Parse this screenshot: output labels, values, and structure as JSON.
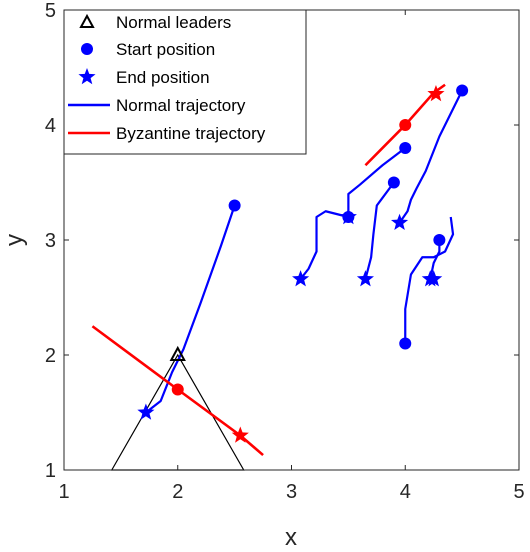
{
  "chart_data": {
    "type": "line",
    "title": "",
    "xlabel": "x",
    "ylabel": "y",
    "xlim": [
      1,
      5
    ],
    "ylim": [
      1,
      5
    ],
    "xticks": [
      "1",
      "2",
      "3",
      "4",
      "5"
    ],
    "yticks": [
      "1",
      "2",
      "3",
      "4",
      "5"
    ],
    "grid": false,
    "legend_position": "top-left",
    "legend": [
      {
        "label": "Normal leaders",
        "marker": "triangle",
        "color": "#000000"
      },
      {
        "label": "Start position",
        "marker": "circle",
        "color": "#0000ff"
      },
      {
        "label": "End position",
        "marker": "star",
        "color": "#0000ff"
      },
      {
        "label": "Normal trajectory",
        "marker": "line",
        "color": "#0000ff"
      },
      {
        "label": "Byzantine trajectory",
        "marker": "line",
        "color": "#ff0000"
      }
    ],
    "leader_triangle": [
      [
        1.42,
        1.0
      ],
      [
        2.0,
        2.0
      ],
      [
        2.58,
        1.0
      ]
    ],
    "normal_trajectories": [
      {
        "points": [
          [
            2.5,
            3.3
          ],
          [
            2.38,
            2.95
          ],
          [
            2.2,
            2.45
          ],
          [
            2.05,
            2.05
          ],
          [
            1.95,
            1.85
          ],
          [
            1.85,
            1.6
          ],
          [
            1.72,
            1.5
          ]
        ],
        "start": [
          2.5,
          3.3
        ],
        "end": [
          1.72,
          1.5
        ]
      },
      {
        "points": [
          [
            4.5,
            4.3
          ],
          [
            4.4,
            4.1
          ],
          [
            4.3,
            3.9
          ],
          [
            4.18,
            3.6
          ],
          [
            4.1,
            3.45
          ],
          [
            4.05,
            3.35
          ],
          [
            4.02,
            3.25
          ],
          [
            3.95,
            3.15
          ]
        ],
        "start": [
          4.5,
          4.3
        ],
        "end": [
          3.95,
          3.15
        ]
      },
      {
        "points": [
          [
            4.0,
            3.8
          ],
          [
            3.8,
            3.65
          ],
          [
            3.6,
            3.48
          ],
          [
            3.5,
            3.4
          ],
          [
            3.5,
            3.2
          ]
        ],
        "start": [
          4.0,
          3.8
        ],
        "end": [
          3.5,
          3.2
        ]
      },
      {
        "points": [
          [
            3.5,
            3.2
          ],
          [
            3.3,
            3.25
          ],
          [
            3.22,
            3.2
          ],
          [
            3.22,
            2.9
          ],
          [
            3.15,
            2.75
          ],
          [
            3.08,
            2.66
          ]
        ],
        "start": [
          3.5,
          3.2
        ],
        "end": [
          3.08,
          2.66
        ]
      },
      {
        "points": [
          [
            3.9,
            3.5
          ],
          [
            3.75,
            3.3
          ],
          [
            3.72,
            3.05
          ],
          [
            3.7,
            2.85
          ],
          [
            3.65,
            2.66
          ]
        ],
        "start": [
          3.9,
          3.5
        ],
        "end": [
          3.65,
          2.66
        ]
      },
      {
        "points": [
          [
            4.0,
            2.1
          ],
          [
            4.0,
            2.4
          ],
          [
            4.05,
            2.7
          ],
          [
            4.15,
            2.85
          ],
          [
            4.25,
            2.85
          ],
          [
            4.35,
            2.9
          ],
          [
            4.42,
            3.05
          ],
          [
            4.4,
            3.2
          ]
        ],
        "start": [
          4.0,
          2.1
        ],
        "end": [
          4.25,
          2.66
        ]
      },
      {
        "points": [
          [
            4.3,
            3.0
          ],
          [
            4.3,
            2.9
          ],
          [
            4.25,
            2.8
          ],
          [
            4.22,
            2.66
          ]
        ],
        "start": [
          4.3,
          3.0
        ],
        "end": [
          4.22,
          2.66
        ]
      }
    ],
    "byzantine_trajectories": [
      {
        "points": [
          [
            1.25,
            2.25
          ],
          [
            2.0,
            1.7
          ],
          [
            2.55,
            1.3
          ],
          [
            2.75,
            1.13
          ]
        ],
        "start": [
          2.0,
          1.7
        ],
        "end": [
          2.55,
          1.3
        ]
      },
      {
        "points": [
          [
            3.65,
            3.65
          ],
          [
            4.0,
            4.0
          ],
          [
            4.25,
            4.28
          ],
          [
            4.35,
            4.35
          ]
        ],
        "start": [
          4.0,
          4.0
        ],
        "end": [
          4.27,
          4.27
        ]
      }
    ]
  }
}
